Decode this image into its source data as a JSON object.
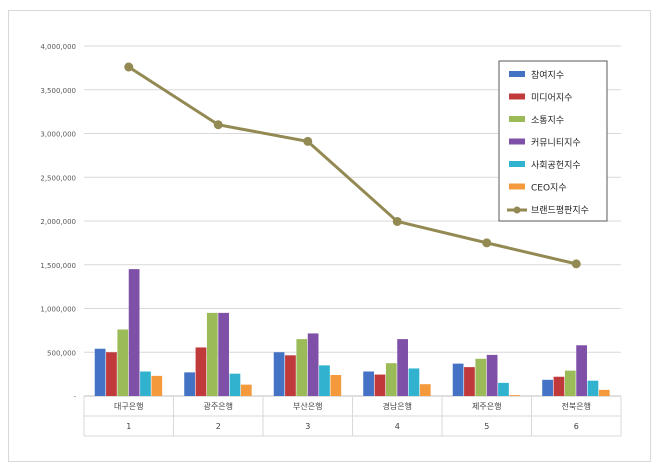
{
  "chart_data": {
    "type": "bar",
    "categories": [
      "대구은행",
      "광주은행",
      "부산은행",
      "경남은행",
      "제주은행",
      "전북은행"
    ],
    "category_numbers": [
      "1",
      "2",
      "3",
      "4",
      "5",
      "6"
    ],
    "ylim": [
      0,
      4000000
    ],
    "yticks": [
      0,
      500000,
      1000000,
      1500000,
      2000000,
      2500000,
      3000000,
      3500000,
      4000000
    ],
    "ytick_labels": [
      "-",
      "500,000",
      "1,000,000",
      "1,500,000",
      "2,000,000",
      "2,500,000",
      "3,000,000",
      "3,500,000",
      "4,000,000"
    ],
    "grid": true,
    "legend_position": "top-right",
    "series": [
      {
        "name": "참여지수",
        "kind": "bar",
        "color": "#4472c4",
        "values": [
          540000,
          270000,
          500000,
          280000,
          370000,
          185000
        ]
      },
      {
        "name": "미디어지수",
        "kind": "bar",
        "color": "#c0393b",
        "values": [
          500000,
          555000,
          465000,
          245000,
          330000,
          220000
        ]
      },
      {
        "name": "소통지수",
        "kind": "bar",
        "color": "#9bbb59",
        "values": [
          760000,
          950000,
          650000,
          375000,
          425000,
          290000
        ]
      },
      {
        "name": "커뮤니티지수",
        "kind": "bar",
        "color": "#7f50a8",
        "values": [
          1450000,
          950000,
          715000,
          650000,
          470000,
          580000
        ]
      },
      {
        "name": "사회공헌지수",
        "kind": "bar",
        "color": "#31b2cf",
        "values": [
          280000,
          255000,
          350000,
          315000,
          150000,
          175000
        ]
      },
      {
        "name": "CEO지수",
        "kind": "bar",
        "color": "#f59a3c",
        "values": [
          230000,
          130000,
          240000,
          135000,
          10000,
          70000
        ]
      },
      {
        "name": "브랜드평판지수",
        "kind": "line",
        "color": "#938953",
        "values": [
          3760000,
          3100000,
          2910000,
          1995000,
          1750000,
          1510000
        ]
      }
    ]
  }
}
